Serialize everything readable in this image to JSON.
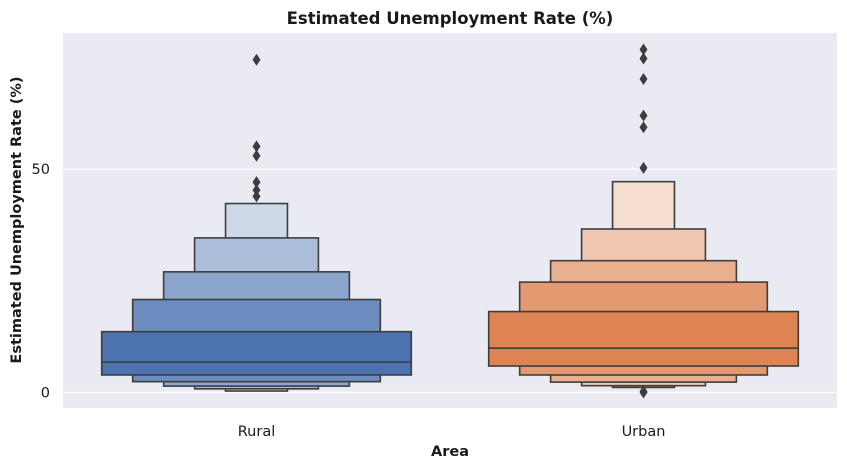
{
  "chart_data": {
    "type": "boxen",
    "title": "Estimated Unemployment Rate (%)",
    "xlabel": "Area",
    "ylabel": "Estimated Unemployment Rate (%)",
    "ylim": [
      -3.5,
      80.5
    ],
    "yticks": [
      0,
      50
    ],
    "grid": true,
    "categories": [
      "Rural",
      "Urban"
    ],
    "series": [
      {
        "category": "Rural",
        "color": "#4c72b0",
        "median": 6.8,
        "levels": [
          {
            "low": 3.9,
            "high": 13.6
          },
          {
            "low": 2.4,
            "high": 20.8
          },
          {
            "low": 1.4,
            "high": 27.0
          },
          {
            "low": 0.8,
            "high": 34.6
          },
          {
            "low": 0.3,
            "high": 42.3
          }
        ],
        "outliers": [
          74.5,
          55.1,
          53.0,
          47.1,
          45.3,
          43.9
        ]
      },
      {
        "category": "Urban",
        "color": "#dd8452",
        "median": 9.9,
        "levels": [
          {
            "low": 5.9,
            "high": 18.1
          },
          {
            "low": 3.9,
            "high": 24.7
          },
          {
            "low": 2.3,
            "high": 29.5
          },
          {
            "low": 1.5,
            "high": 36.6
          },
          {
            "low": 1.1,
            "high": 47.2
          }
        ],
        "outliers": [
          76.8,
          74.8,
          70.2,
          62.0,
          59.4,
          50.3,
          0.0,
          0.2
        ]
      }
    ]
  }
}
